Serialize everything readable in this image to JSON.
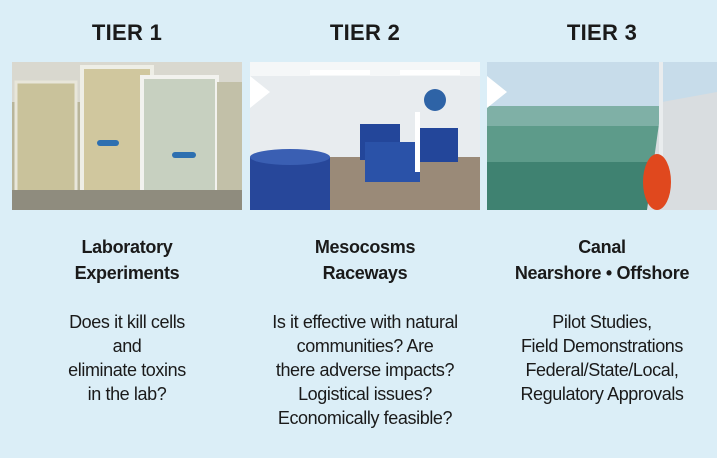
{
  "tiers": [
    {
      "label": "TIER 1",
      "title_lines": [
        "Laboratory",
        "Experiments"
      ],
      "description_lines": [
        "Does it kill cells",
        "and",
        "eliminate toxins",
        "in the lab?"
      ]
    },
    {
      "label": "TIER 2",
      "title_lines": [
        "Mesocosms",
        "Raceways"
      ],
      "description_lines": [
        "Is it effective with natural",
        "communities? Are",
        "there adverse impacts?",
        "Logistical issues?",
        "Economically feasible?"
      ]
    },
    {
      "label": "TIER 3",
      "title_lines": [
        "Canal",
        "Nearshore • Offshore"
      ],
      "description_lines": [
        "Pilot Studies,",
        "Field Demonstrations",
        "Federal/State/Local,",
        "Regulatory Approvals"
      ]
    }
  ]
}
